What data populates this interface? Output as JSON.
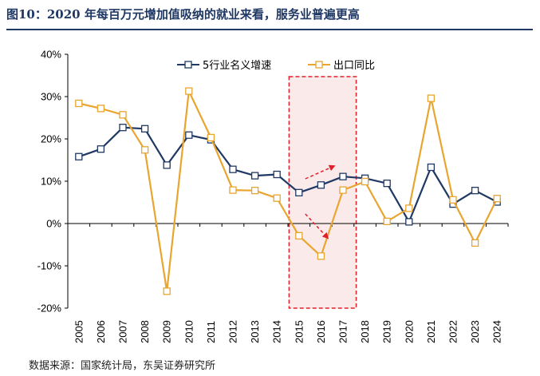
{
  "header": {
    "title": "图10：2020 年每百万元增加值吸纳的就业来看，服务业普遍更高"
  },
  "footer": {
    "source": "数据来源：国家统计局，东吴证券研究所"
  },
  "colors": {
    "title": "#1f3864",
    "series_navy": "#1f3864",
    "series_orange": "#e8a530",
    "highlight_border": "#e0202a",
    "highlight_fill": "#fbeaea",
    "arrow": "#e0202a"
  },
  "chart_data": {
    "type": "line",
    "x": [
      "2005",
      "2006",
      "2007",
      "2008",
      "2009",
      "2010",
      "2011",
      "2012",
      "2013",
      "2014",
      "2015",
      "2016",
      "2017",
      "2018",
      "2019",
      "2020",
      "2021",
      "2022",
      "2023",
      "2024"
    ],
    "series": [
      {
        "name": "5行业名义增速",
        "color": "#1f3864",
        "values": [
          15.8,
          17.6,
          22.7,
          22.4,
          13.8,
          20.9,
          19.8,
          12.8,
          11.3,
          11.6,
          7.3,
          9.1,
          11.1,
          10.7,
          9.5,
          0.4,
          13.3,
          4.6,
          7.8,
          5.1
        ]
      },
      {
        "name": "出口同比",
        "color": "#e8a530",
        "values": [
          28.4,
          27.2,
          25.7,
          17.4,
          -16.0,
          31.3,
          20.3,
          7.9,
          7.8,
          6.0,
          -2.9,
          -7.7,
          7.9,
          9.9,
          0.5,
          3.6,
          29.6,
          5.6,
          -4.6,
          5.9
        ]
      }
    ],
    "y_ticks": [
      "40%",
      "30%",
      "20%",
      "10%",
      "0%",
      "-10%",
      "-20%"
    ],
    "ylim": [
      -20,
      40
    ],
    "ytick_step": 10,
    "legend_position": "top-center",
    "grid": false,
    "highlight": {
      "x_start": "2015",
      "x_end": "2017",
      "style": "dashed red box"
    },
    "annotations": [
      {
        "type": "arrow",
        "direction": "up-right",
        "near": "2015-2016",
        "series": "5行业名义增速"
      },
      {
        "type": "arrow",
        "direction": "down-right",
        "near": "2015-2016",
        "series": "出口同比"
      }
    ]
  }
}
